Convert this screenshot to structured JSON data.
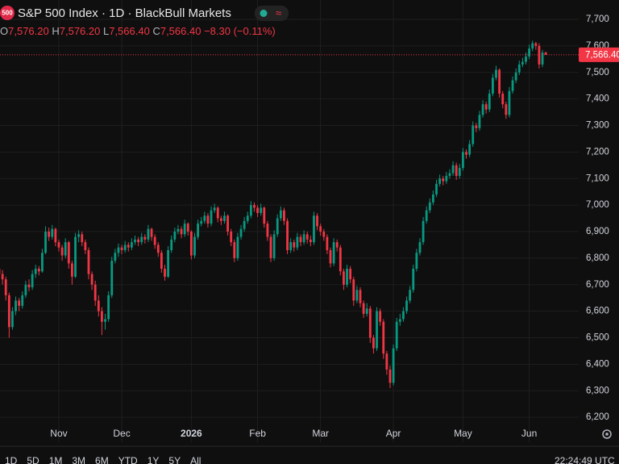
{
  "chart_data": {
    "type": "candlestick",
    "title": "S&P 500 Index · 1D · BlackBull Markets",
    "up_color": "#089981",
    "down_color": "#f23645",
    "ylim": [
      6106,
      7773
    ],
    "yticks": [
      {
        "value": 6200,
        "label": "6,200"
      },
      {
        "value": 6300,
        "label": "6,300"
      },
      {
        "value": 6400,
        "label": "6,400"
      },
      {
        "value": 6500,
        "label": "6,500"
      },
      {
        "value": 6600,
        "label": "6,600"
      },
      {
        "value": 6700,
        "label": "6,700"
      },
      {
        "value": 6800,
        "label": "6,800"
      },
      {
        "value": 6900,
        "label": "6,900"
      },
      {
        "value": 7000,
        "label": "7,000"
      },
      {
        "value": 7100,
        "label": "7,100"
      },
      {
        "value": 7200,
        "label": "7,200"
      },
      {
        "value": 7300,
        "label": "7,300"
      },
      {
        "value": 7400,
        "label": "7,400"
      },
      {
        "value": 7500,
        "label": "7,500"
      },
      {
        "value": 7600,
        "label": "7,600"
      },
      {
        "value": 7700,
        "label": "7,700"
      }
    ],
    "grid": true,
    "last_price": {
      "value": 7566.4,
      "label": "7,566.40"
    },
    "categories": [
      null,
      null,
      null,
      null,
      null,
      null,
      null,
      null,
      null,
      null,
      null,
      null,
      null,
      null,
      null,
      null,
      null,
      null,
      "Nov",
      null,
      null,
      null,
      null,
      null,
      null,
      null,
      null,
      null,
      null,
      null,
      null,
      null,
      null,
      null,
      null,
      null,
      null,
      "Dec",
      null,
      null,
      null,
      null,
      null,
      null,
      null,
      null,
      null,
      null,
      null,
      null,
      null,
      null,
      null,
      null,
      null,
      null,
      null,
      null,
      "2026",
      null,
      null,
      null,
      null,
      null,
      null,
      null,
      null,
      null,
      null,
      null,
      null,
      null,
      null,
      null,
      null,
      null,
      null,
      null,
      "Feb",
      null,
      null,
      null,
      null,
      null,
      null,
      null,
      null,
      null,
      null,
      null,
      null,
      null,
      null,
      null,
      null,
      null,
      null,
      "Mar",
      null,
      null,
      null,
      null,
      null,
      null,
      null,
      null,
      null,
      null,
      null,
      null,
      null,
      null,
      null,
      null,
      null,
      null,
      null,
      null,
      null,
      "Apr",
      null,
      null,
      null,
      null,
      null,
      null,
      null,
      null,
      null,
      null,
      null,
      null,
      null,
      null,
      null,
      null,
      null,
      null,
      null,
      null,
      "May",
      null,
      null,
      null,
      null,
      null,
      null,
      null,
      null,
      null,
      null,
      null,
      null,
      null,
      null,
      null,
      null,
      null,
      null,
      null,
      "Jun",
      null,
      null,
      null,
      null
    ],
    "candles": [
      [
        6760,
        6775,
        6720,
        6740
      ],
      [
        6740,
        6755,
        6700,
        6720
      ],
      [
        6720,
        6730,
        6640,
        6660
      ],
      [
        6660,
        6670,
        6500,
        6540
      ],
      [
        6540,
        6615,
        6530,
        6600
      ],
      [
        6600,
        6655,
        6585,
        6640
      ],
      [
        6640,
        6650,
        6600,
        6620
      ],
      [
        6620,
        6675,
        6610,
        6660
      ],
      [
        6660,
        6715,
        6650,
        6700
      ],
      [
        6700,
        6720,
        6675,
        6690
      ],
      [
        6690,
        6755,
        6680,
        6740
      ],
      [
        6740,
        6775,
        6725,
        6760
      ],
      [
        6760,
        6770,
        6735,
        6750
      ],
      [
        6750,
        6835,
        6745,
        6820
      ],
      [
        6820,
        6920,
        6815,
        6900
      ],
      [
        6900,
        6915,
        6865,
        6880
      ],
      [
        6880,
        6925,
        6870,
        6910
      ],
      [
        6910,
        6915,
        6845,
        6860
      ],
      [
        6860,
        6870,
        6825,
        6840
      ],
      [
        6840,
        6850,
        6790,
        6810
      ],
      [
        6810,
        6875,
        6800,
        6860
      ],
      [
        6860,
        6865,
        6760,
        6780
      ],
      [
        6780,
        6790,
        6700,
        6730
      ],
      [
        6730,
        6895,
        6725,
        6880
      ],
      [
        6880,
        6905,
        6860,
        6890
      ],
      [
        6890,
        6900,
        6845,
        6860
      ],
      [
        6860,
        6870,
        6815,
        6830
      ],
      [
        6830,
        6840,
        6720,
        6740
      ],
      [
        6740,
        6750,
        6680,
        6700
      ],
      [
        6700,
        6715,
        6620,
        6640
      ],
      [
        6640,
        6660,
        6580,
        6600
      ],
      [
        6600,
        6615,
        6510,
        6560
      ],
      [
        6560,
        6590,
        6530,
        6570
      ],
      [
        6570,
        6675,
        6560,
        6660
      ],
      [
        6660,
        6805,
        6650,
        6790
      ],
      [
        6790,
        6835,
        6780,
        6820
      ],
      [
        6820,
        6855,
        6805,
        6840
      ],
      [
        6840,
        6850,
        6815,
        6830
      ],
      [
        6830,
        6865,
        6820,
        6850
      ],
      [
        6850,
        6860,
        6825,
        6840
      ],
      [
        6840,
        6875,
        6830,
        6860
      ],
      [
        6860,
        6885,
        6850,
        6870
      ],
      [
        6870,
        6880,
        6845,
        6860
      ],
      [
        6860,
        6895,
        6850,
        6880
      ],
      [
        6880,
        6890,
        6855,
        6870
      ],
      [
        6870,
        6925,
        6860,
        6910
      ],
      [
        6910,
        6915,
        6865,
        6880
      ],
      [
        6880,
        6890,
        6835,
        6850
      ],
      [
        6850,
        6860,
        6805,
        6820
      ],
      [
        6820,
        6830,
        6745,
        6760
      ],
      [
        6760,
        6775,
        6715,
        6730
      ],
      [
        6730,
        6845,
        6725,
        6830
      ],
      [
        6830,
        6885,
        6820,
        6870
      ],
      [
        6870,
        6915,
        6860,
        6900
      ],
      [
        6900,
        6925,
        6890,
        6910
      ],
      [
        6910,
        6920,
        6875,
        6890
      ],
      [
        6890,
        6945,
        6880,
        6930
      ],
      [
        6930,
        6935,
        6885,
        6900
      ],
      [
        6900,
        6905,
        6795,
        6810
      ],
      [
        6810,
        6895,
        6800,
        6880
      ],
      [
        6880,
        6945,
        6870,
        6930
      ],
      [
        6930,
        6955,
        6920,
        6940
      ],
      [
        6940,
        6975,
        6930,
        6960
      ],
      [
        6960,
        6970,
        6915,
        6930
      ],
      [
        6930,
        6995,
        6920,
        6980
      ],
      [
        6980,
        7005,
        6970,
        6990
      ],
      [
        6990,
        6995,
        6935,
        6950
      ],
      [
        6950,
        6960,
        6925,
        6940
      ],
      [
        6940,
        6975,
        6930,
        6960
      ],
      [
        6960,
        6965,
        6885,
        6900
      ],
      [
        6900,
        6910,
        6845,
        6860
      ],
      [
        6860,
        6870,
        6785,
        6800
      ],
      [
        6800,
        6895,
        6790,
        6880
      ],
      [
        6880,
        6925,
        6870,
        6910
      ],
      [
        6910,
        6955,
        6900,
        6940
      ],
      [
        6940,
        6975,
        6930,
        6960
      ],
      [
        6960,
        7015,
        6950,
        7000
      ],
      [
        7000,
        7010,
        6975,
        6990
      ],
      [
        6990,
        7000,
        6955,
        6970
      ],
      [
        6970,
        7005,
        6960,
        6990
      ],
      [
        6990,
        6995,
        6915,
        6930
      ],
      [
        6930,
        6940,
        6865,
        6880
      ],
      [
        6880,
        6890,
        6785,
        6800
      ],
      [
        6800,
        6905,
        6790,
        6890
      ],
      [
        6890,
        6965,
        6880,
        6950
      ],
      [
        6950,
        6995,
        6940,
        6980
      ],
      [
        6980,
        6990,
        6925,
        6940
      ],
      [
        6940,
        6950,
        6815,
        6830
      ],
      [
        6830,
        6875,
        6820,
        6860
      ],
      [
        6860,
        6870,
        6825,
        6840
      ],
      [
        6840,
        6895,
        6830,
        6880
      ],
      [
        6880,
        6890,
        6845,
        6860
      ],
      [
        6860,
        6905,
        6850,
        6890
      ],
      [
        6890,
        6900,
        6855,
        6870
      ],
      [
        6870,
        6885,
        6845,
        6860
      ],
      [
        6860,
        6975,
        6850,
        6960
      ],
      [
        6960,
        6970,
        6905,
        6920
      ],
      [
        6920,
        6930,
        6885,
        6900
      ],
      [
        6900,
        6910,
        6865,
        6880
      ],
      [
        6880,
        6890,
        6815,
        6830
      ],
      [
        6830,
        6840,
        6765,
        6780
      ],
      [
        6780,
        6875,
        6770,
        6860
      ],
      [
        6860,
        6870,
        6825,
        6840
      ],
      [
        6840,
        6850,
        6735,
        6750
      ],
      [
        6750,
        6760,
        6680,
        6700
      ],
      [
        6700,
        6775,
        6690,
        6760
      ],
      [
        6760,
        6770,
        6705,
        6720
      ],
      [
        6720,
        6730,
        6620,
        6640
      ],
      [
        6640,
        6695,
        6630,
        6680
      ],
      [
        6680,
        6690,
        6615,
        6630
      ],
      [
        6630,
        6640,
        6575,
        6590
      ],
      [
        6590,
        6630,
        6580,
        6610
      ],
      [
        6610,
        6620,
        6480,
        6500
      ],
      [
        6500,
        6510,
        6440,
        6460
      ],
      [
        6460,
        6615,
        6450,
        6600
      ],
      [
        6600,
        6610,
        6545,
        6560
      ],
      [
        6560,
        6570,
        6420,
        6440
      ],
      [
        6440,
        6450,
        6360,
        6380
      ],
      [
        6380,
        6395,
        6310,
        6330
      ],
      [
        6330,
        6475,
        6320,
        6460
      ],
      [
        6460,
        6575,
        6450,
        6560
      ],
      [
        6560,
        6590,
        6545,
        6570
      ],
      [
        6570,
        6615,
        6560,
        6600
      ],
      [
        6600,
        6655,
        6590,
        6640
      ],
      [
        6640,
        6695,
        6630,
        6680
      ],
      [
        6680,
        6775,
        6670,
        6760
      ],
      [
        6760,
        6835,
        6750,
        6820
      ],
      [
        6820,
        6875,
        6810,
        6860
      ],
      [
        6860,
        6955,
        6850,
        6940
      ],
      [
        6940,
        6995,
        6930,
        6980
      ],
      [
        6980,
        7025,
        6970,
        7010
      ],
      [
        7010,
        7055,
        7000,
        7040
      ],
      [
        7040,
        7095,
        7030,
        7080
      ],
      [
        7080,
        7115,
        7070,
        7100
      ],
      [
        7100,
        7110,
        7075,
        7090
      ],
      [
        7090,
        7125,
        7080,
        7110
      ],
      [
        7110,
        7135,
        7100,
        7120
      ],
      [
        7120,
        7165,
        7110,
        7150
      ],
      [
        7150,
        7160,
        7095,
        7110
      ],
      [
        7110,
        7155,
        7100,
        7140
      ],
      [
        7140,
        7215,
        7130,
        7200
      ],
      [
        7200,
        7210,
        7175,
        7190
      ],
      [
        7190,
        7245,
        7180,
        7230
      ],
      [
        7230,
        7315,
        7220,
        7300
      ],
      [
        7300,
        7310,
        7275,
        7290
      ],
      [
        7290,
        7355,
        7280,
        7340
      ],
      [
        7340,
        7395,
        7330,
        7380
      ],
      [
        7380,
        7390,
        7345,
        7360
      ],
      [
        7360,
        7435,
        7350,
        7420
      ],
      [
        7420,
        7495,
        7410,
        7480
      ],
      [
        7480,
        7525,
        7470,
        7510
      ],
      [
        7510,
        7515,
        7405,
        7420
      ],
      [
        7420,
        7430,
        7365,
        7380
      ],
      [
        7380,
        7390,
        7325,
        7340
      ],
      [
        7340,
        7445,
        7330,
        7430
      ],
      [
        7430,
        7485,
        7420,
        7470
      ],
      [
        7470,
        7515,
        7460,
        7500
      ],
      [
        7500,
        7545,
        7490,
        7530
      ],
      [
        7530,
        7555,
        7520,
        7540
      ],
      [
        7540,
        7575,
        7530,
        7560
      ],
      [
        7560,
        7605,
        7550,
        7590
      ],
      [
        7590,
        7620,
        7580,
        7610
      ],
      [
        7610,
        7615,
        7585,
        7600
      ],
      [
        7600,
        7610,
        7515,
        7530
      ],
      [
        7530,
        7585,
        7520,
        7574.7
      ],
      [
        7576.2,
        7576.2,
        7566.4,
        7566.4
      ]
    ]
  },
  "header": {
    "logo": "500",
    "o_key": "O",
    "o_val": "7,576.20",
    "h_key": "H",
    "h_val": "7,576.20",
    "l_key": "L",
    "l_val": "7,566.40",
    "c_key": "C",
    "c_val": "7,566.40",
    "change": "−8.30 (−0.11%)",
    "wave": "≈"
  },
  "toolbar": {
    "ranges": [
      "1D",
      "5D",
      "1M",
      "3M",
      "6M",
      "YTD",
      "1Y",
      "5Y",
      "All"
    ],
    "time": "22:24:49 UTC"
  }
}
